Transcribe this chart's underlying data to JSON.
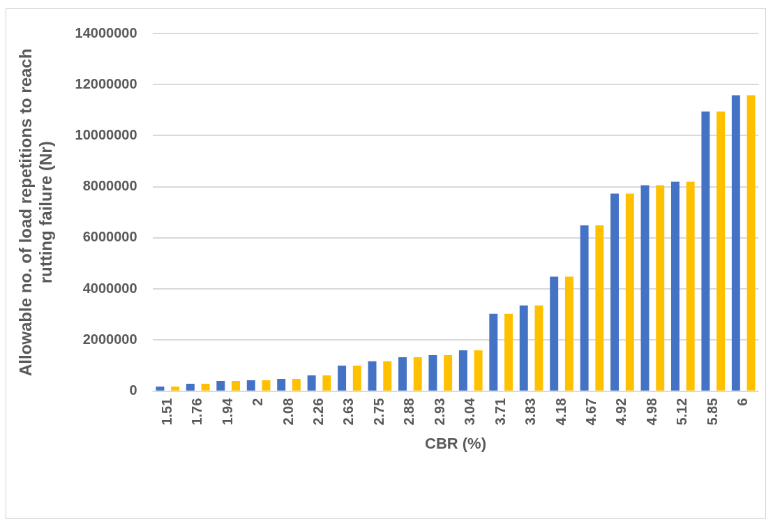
{
  "chart_data": {
    "type": "bar",
    "xlabel": "CBR (%)",
    "ylabel": "Allowable no. of load repetitions to reach rutting failure (Nr)",
    "categories": [
      "1.51",
      "1.76",
      "1.94",
      "2",
      "2.08",
      "2.26",
      "2.63",
      "2.75",
      "2.88",
      "2.93",
      "3.04",
      "3.71",
      "3.83",
      "4.18",
      "4.67",
      "4.92",
      "4.98",
      "5.12",
      "5.85",
      "6"
    ],
    "series": [
      {
        "color": "#4472c4",
        "values": [
          180000,
          290000,
          400000,
          430000,
          480000,
          620000,
          1000000,
          1170000,
          1330000,
          1410000,
          1600000,
          3030000,
          3360000,
          4480000,
          6490000,
          7730000,
          8060000,
          8200000,
          10950000,
          11580000
        ]
      },
      {
        "color": "#ffc000",
        "values": [
          180000,
          290000,
          400000,
          430000,
          480000,
          620000,
          1000000,
          1170000,
          1330000,
          1410000,
          1600000,
          3030000,
          3360000,
          4480000,
          6490000,
          7730000,
          8060000,
          8200000,
          10950000,
          11580000
        ]
      }
    ],
    "ylim": [
      0,
      14000000
    ],
    "yticks": [
      0,
      2000000,
      4000000,
      6000000,
      8000000,
      10000000,
      12000000,
      14000000
    ],
    "grid": "y",
    "legend": false
  }
}
